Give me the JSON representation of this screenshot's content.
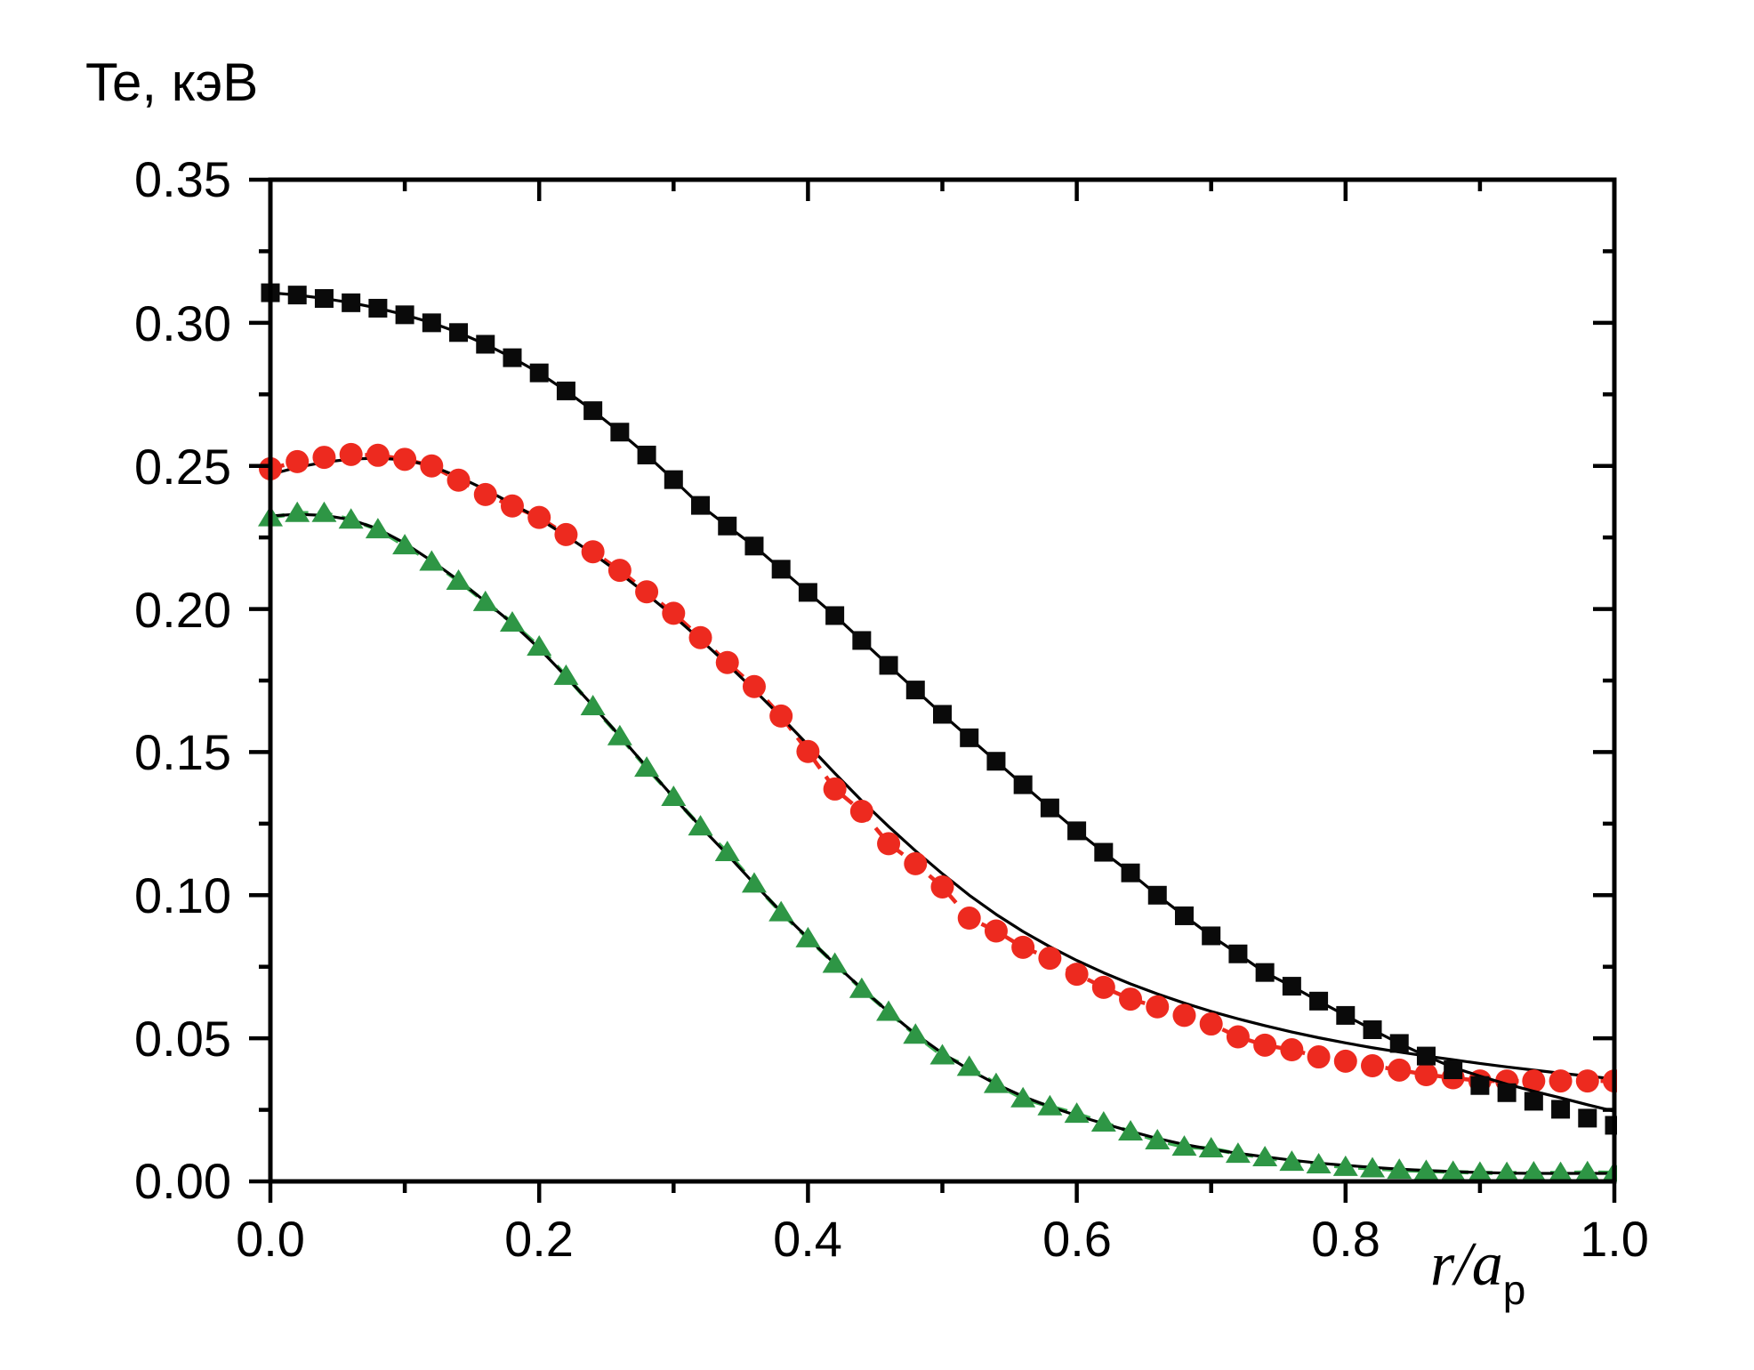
{
  "figure": {
    "y_axis_title": "Te, кэВ",
    "x_axis_title_main": "r/a",
    "x_axis_title_sub": "p"
  },
  "axes": {
    "x": {
      "min": 0.0,
      "max": 1.0,
      "major_ticks": [
        0.0,
        0.2,
        0.4,
        0.6,
        0.8,
        1.0
      ],
      "minor_ticks": [
        0.1,
        0.3,
        0.5,
        0.7,
        0.9
      ],
      "tick_labels": [
        "0.0",
        "0.2",
        "0.4",
        "0.6",
        "0.8",
        "1.0"
      ]
    },
    "y": {
      "min": 0.0,
      "max": 0.35,
      "major_ticks": [
        0.0,
        0.05,
        0.1,
        0.15,
        0.2,
        0.25,
        0.3,
        0.35
      ],
      "minor_ticks": [
        0.025,
        0.075,
        0.125,
        0.175,
        0.225,
        0.275,
        0.325
      ],
      "tick_labels": [
        "0.00",
        "0.05",
        "0.10",
        "0.15",
        "0.20",
        "0.25",
        "0.30",
        "0.35"
      ]
    }
  },
  "colors": {
    "frame": "#000000",
    "fit_line": "#000000",
    "square_series": "#0a0a0a",
    "circle_series": "#ed2a1f",
    "triangle_series": "#2e9645",
    "background": "#ffffff"
  },
  "chart_data": {
    "type": "scatter",
    "title": "",
    "xlabel": "r/a_p",
    "ylabel": "Te, кэВ",
    "xlim": [
      0.0,
      1.0
    ],
    "ylim": [
      0.0,
      0.35
    ],
    "grid": false,
    "legend": false,
    "x": [
      0.0,
      0.02,
      0.04,
      0.06,
      0.08,
      0.1,
      0.12,
      0.14,
      0.16,
      0.18,
      0.2,
      0.22,
      0.24,
      0.26,
      0.28,
      0.3,
      0.32,
      0.34,
      0.36,
      0.38,
      0.4,
      0.42,
      0.44,
      0.46,
      0.48,
      0.5,
      0.52,
      0.54,
      0.56,
      0.58,
      0.6,
      0.62,
      0.64,
      0.66,
      0.68,
      0.7,
      0.72,
      0.74,
      0.76,
      0.78,
      0.8,
      0.82,
      0.84,
      0.86,
      0.88,
      0.9,
      0.92,
      0.94,
      0.96,
      0.98,
      1.0
    ],
    "series": [
      {
        "name": "black-squares",
        "marker": "square",
        "color": "#0a0a0a",
        "dash_color": null,
        "values": [
          0.3105,
          0.3097,
          0.3085,
          0.307,
          0.3051,
          0.3028,
          0.3,
          0.2966,
          0.2925,
          0.2878,
          0.2825,
          0.2762,
          0.2693,
          0.2618,
          0.2538,
          0.2452,
          0.2362,
          0.229,
          0.222,
          0.2139,
          0.2058,
          0.1977,
          0.189,
          0.1803,
          0.1717,
          0.1632,
          0.155,
          0.1468,
          0.1386,
          0.1305,
          0.1225,
          0.115,
          0.1078,
          0.1,
          0.0928,
          0.0858,
          0.0795,
          0.073,
          0.0682,
          0.063,
          0.058,
          0.053,
          0.0482,
          0.0438,
          0.039,
          0.0335,
          0.031,
          0.028,
          0.0252,
          0.0221,
          0.0196
        ],
        "fit": [
          0.3105,
          0.3097,
          0.3085,
          0.307,
          0.3051,
          0.3028,
          0.3,
          0.2966,
          0.2925,
          0.2878,
          0.2825,
          0.2762,
          0.2693,
          0.2618,
          0.2538,
          0.2452,
          0.2362,
          0.229,
          0.222,
          0.2139,
          0.2058,
          0.1977,
          0.189,
          0.1803,
          0.1717,
          0.1632,
          0.155,
          0.1468,
          0.1386,
          0.1305,
          0.1225,
          0.115,
          0.1078,
          0.1,
          0.0928,
          0.0858,
          0.0795,
          0.073,
          0.0682,
          0.063,
          0.058,
          0.053,
          0.0482,
          0.0438,
          0.0398,
          0.0368,
          0.034,
          0.0315,
          0.0292,
          0.0268,
          0.0245
        ]
      },
      {
        "name": "red-circles",
        "marker": "circle",
        "color": "#ed2a1f",
        "dash_color": "#ed2a1f",
        "values": [
          0.249,
          0.2515,
          0.253,
          0.254,
          0.2537,
          0.2523,
          0.25,
          0.245,
          0.24,
          0.236,
          0.232,
          0.226,
          0.22,
          0.2135,
          0.206,
          0.1985,
          0.19,
          0.1813,
          0.1729,
          0.1626,
          0.1502,
          0.1371,
          0.1293,
          0.118,
          0.111,
          0.1029,
          0.092,
          0.0875,
          0.0818,
          0.078,
          0.0724,
          0.0678,
          0.0637,
          0.061,
          0.058,
          0.055,
          0.0505,
          0.0476,
          0.046,
          0.0435,
          0.042,
          0.0404,
          0.0389,
          0.0373,
          0.0362,
          0.0351,
          0.0351,
          0.0351,
          0.0351,
          0.0351,
          0.0351
        ],
        "fit": [
          0.247,
          0.2495,
          0.2513,
          0.2524,
          0.2527,
          0.2521,
          0.25,
          0.2462,
          0.2417,
          0.2368,
          0.2315,
          0.2256,
          0.2193,
          0.2125,
          0.2052,
          0.1975,
          0.1893,
          0.1807,
          0.1717,
          0.1623,
          0.1525,
          0.1426,
          0.133,
          0.124,
          0.1155,
          0.1075,
          0.1,
          0.0933,
          0.0873,
          0.082,
          0.0772,
          0.0729,
          0.069,
          0.0655,
          0.0623,
          0.0594,
          0.0568,
          0.0544,
          0.0522,
          0.0502,
          0.0484,
          0.0467,
          0.0452,
          0.0438,
          0.0425,
          0.0412,
          0.04,
          0.0389,
          0.0378,
          0.0368,
          0.0358
        ]
      },
      {
        "name": "green-triangles",
        "marker": "triangle",
        "color": "#2e9645",
        "dash_color": "#3fae54",
        "values": [
          0.232,
          0.2335,
          0.2335,
          0.2312,
          0.2278,
          0.2222,
          0.2165,
          0.2098,
          0.2024,
          0.1952,
          0.1868,
          0.1766,
          0.166,
          0.1555,
          0.1445,
          0.1343,
          0.124,
          0.115,
          0.104,
          0.094,
          0.0849,
          0.076,
          0.0672,
          0.0592,
          0.0512,
          0.044,
          0.04,
          0.034,
          0.029,
          0.0262,
          0.0236,
          0.0205,
          0.0174,
          0.0143,
          0.0121,
          0.0115,
          0.0096,
          0.0084,
          0.0068,
          0.0059,
          0.005,
          0.0045,
          0.004,
          0.0036,
          0.0033,
          0.003,
          0.0029,
          0.0031,
          0.0029,
          0.0032,
          0.003
        ],
        "fit": [
          0.2325,
          0.2331,
          0.2327,
          0.2312,
          0.228,
          0.223,
          0.2168,
          0.21,
          0.2026,
          0.195,
          0.1862,
          0.1764,
          0.1662,
          0.1556,
          0.1448,
          0.1342,
          0.124,
          0.1142,
          0.104,
          0.0942,
          0.085,
          0.076,
          0.0674,
          0.0592,
          0.0515,
          0.0448,
          0.039,
          0.034,
          0.0297,
          0.0261,
          0.023,
          0.0202,
          0.0175,
          0.015,
          0.0129,
          0.0112,
          0.0098,
          0.0086,
          0.0074,
          0.0064,
          0.0056,
          0.0049,
          0.0043,
          0.0038,
          0.0034,
          0.0031,
          0.0029,
          0.0028,
          0.0028,
          0.0028,
          0.0028
        ]
      }
    ]
  }
}
